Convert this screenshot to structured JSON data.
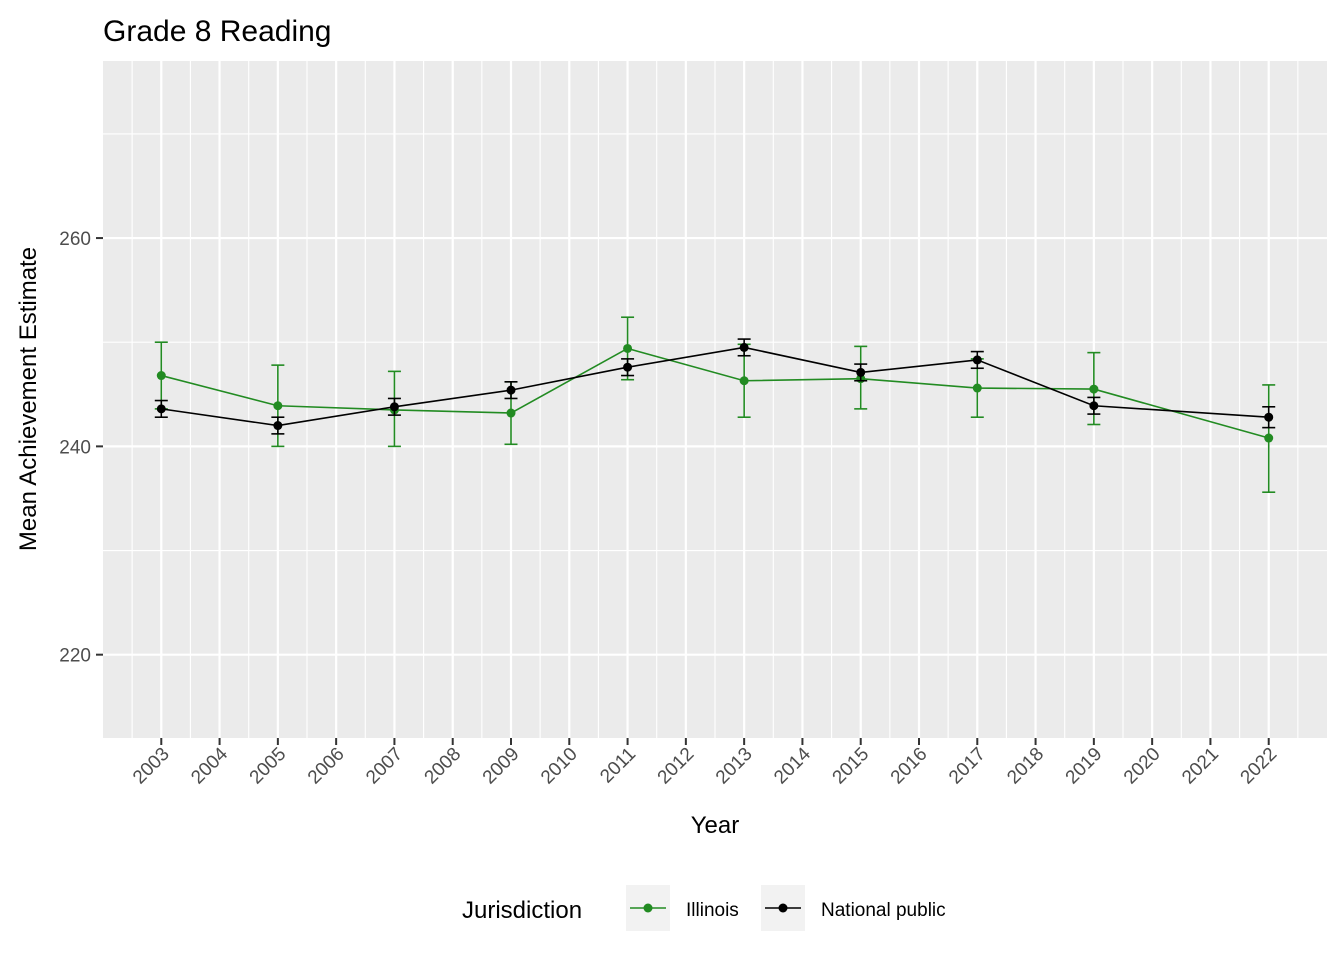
{
  "chart_data": {
    "type": "line",
    "title": "Grade 8 Reading",
    "xlabel": "Year",
    "ylabel": "Mean Achievement Estimate",
    "xlim": [
      2002,
      2023
    ],
    "ylim": [
      212,
      277
    ],
    "x_ticks": [
      "2003",
      "2004",
      "2005",
      "2006",
      "2007",
      "2008",
      "2009",
      "2010",
      "2011",
      "2012",
      "2013",
      "2014",
      "2015",
      "2016",
      "2017",
      "2018",
      "2019",
      "2020",
      "2021",
      "2022"
    ],
    "y_ticks": [
      220,
      240,
      260
    ],
    "grid": true,
    "legend": {
      "title": "Jurisdiction",
      "position": "bottom"
    },
    "series": [
      {
        "name": "Illinois",
        "color": "#228b22",
        "x": [
          2003,
          2005,
          2007,
          2009,
          2011,
          2013,
          2015,
          2017,
          2019,
          2022
        ],
        "y": [
          246.8,
          243.9,
          243.5,
          243.2,
          249.4,
          246.3,
          246.5,
          245.6,
          245.5,
          240.8
        ],
        "lower": [
          243.6,
          240.0,
          240.0,
          240.2,
          246.4,
          242.8,
          243.6,
          242.8,
          242.1,
          235.6
        ],
        "upper": [
          250.0,
          247.8,
          247.2,
          246.2,
          252.4,
          249.8,
          249.6,
          248.4,
          249.0,
          245.9
        ]
      },
      {
        "name": "National public",
        "color": "#000000",
        "x": [
          2003,
          2005,
          2007,
          2009,
          2011,
          2013,
          2015,
          2017,
          2019,
          2022
        ],
        "y": [
          243.6,
          242.0,
          243.8,
          245.4,
          247.6,
          249.5,
          247.1,
          248.3,
          243.9,
          242.8
        ],
        "lower": [
          242.8,
          241.2,
          243.0,
          244.6,
          246.8,
          248.7,
          246.3,
          247.5,
          243.1,
          241.8
        ],
        "upper": [
          244.4,
          242.8,
          244.6,
          246.2,
          248.4,
          250.3,
          247.9,
          249.1,
          244.7,
          243.8
        ]
      }
    ]
  }
}
